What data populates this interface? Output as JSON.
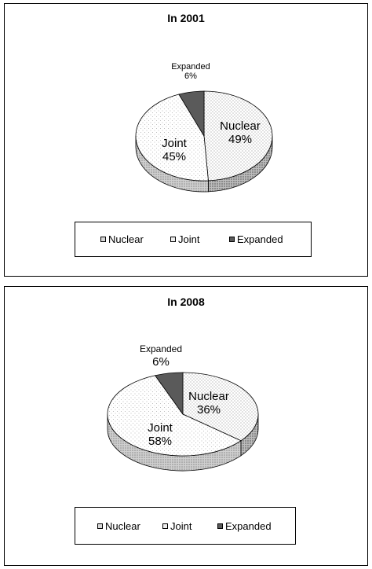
{
  "chart_data": [
    {
      "type": "pie",
      "title": "In 2001",
      "slices": [
        {
          "label": "Nuclear",
          "value": 49,
          "display": "49%"
        },
        {
          "label": "Joint",
          "value": 45,
          "display": "45%"
        },
        {
          "label": "Expanded",
          "value": 6,
          "display": "6%"
        }
      ],
      "legend": [
        "Nuclear",
        "Joint",
        "Expanded"
      ],
      "legend_position": "bottom"
    },
    {
      "type": "pie",
      "title": "In 2008",
      "slices": [
        {
          "label": "Nuclear",
          "value": 36,
          "display": "36%"
        },
        {
          "label": "Joint",
          "value": 58,
          "display": "58%"
        },
        {
          "label": "Expanded",
          "value": 6,
          "display": "6%"
        }
      ],
      "legend": [
        "Nuclear",
        "Joint",
        "Expanded"
      ],
      "legend_position": "bottom"
    }
  ],
  "colors": {
    "nuclear_pattern": "#9a9a9a",
    "joint_pattern": "#b0b0b0",
    "expanded_fill": "#5a5a5a"
  }
}
